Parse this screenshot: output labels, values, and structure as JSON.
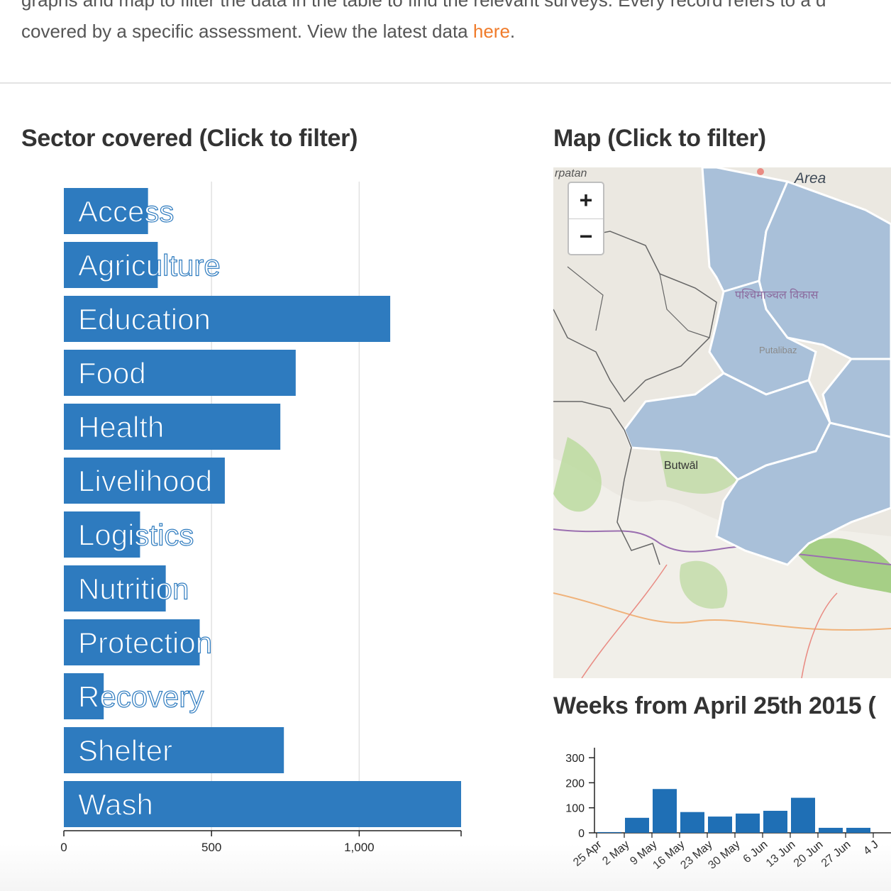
{
  "intro": {
    "line1": "graphs and map to filter the data in the table to find the relevant surveys. Every record refers to a d",
    "line2_text": "covered by a specific assessment. View the latest data ",
    "link_text": "here",
    "line2_end": "."
  },
  "sector_section": {
    "title": "Sector covered (Click to filter)"
  },
  "map_section": {
    "title": "Map (Click to filter)",
    "zoom_in": "+",
    "zoom_out": "−",
    "labels": {
      "top_left": "rpatan",
      "area": "Area",
      "city": "Butwāl",
      "putali": "Putalibaz",
      "devanagari": "पश्चिमाञ्चल विकास"
    }
  },
  "weeks_section": {
    "title": "Weeks from April 25th 2015 ("
  },
  "colors": {
    "bar": "#2e7bbf",
    "weeks_bar": "#1f6fb5",
    "link": "#f07b2a",
    "region": "#a9c0d9"
  },
  "chart_data": [
    {
      "type": "bar",
      "orientation": "horizontal",
      "title": "Sector covered (Click to filter)",
      "categories": [
        "Access",
        "Agriculture",
        "Education",
        "Food",
        "Health",
        "Livelihood",
        "Logistics",
        "Nutrition",
        "Protection",
        "Recovery",
        "Shelter",
        "Wash"
      ],
      "values": [
        285,
        318,
        1105,
        785,
        733,
        545,
        258,
        345,
        460,
        135,
        745,
        1345
      ],
      "xlim": [
        0,
        1345
      ],
      "xticks": [
        0,
        500,
        1000
      ],
      "xtick_labels": [
        "0",
        "500",
        "1,000"
      ],
      "grid": true
    },
    {
      "type": "bar",
      "title": "Weeks from April 25th 2015 (",
      "categories": [
        "25 Apr",
        "2 May",
        "9 May",
        "16 May",
        "23 May",
        "30 May",
        "6 Jun",
        "13 Jun",
        "20 Jun",
        "27 Jun",
        "4 J"
      ],
      "values": [
        3,
        60,
        175,
        83,
        65,
        77,
        88,
        140,
        20,
        20,
        0
      ],
      "ylim": [
        0,
        340
      ],
      "yticks": [
        0,
        100,
        200,
        300
      ],
      "grid": false
    }
  ]
}
